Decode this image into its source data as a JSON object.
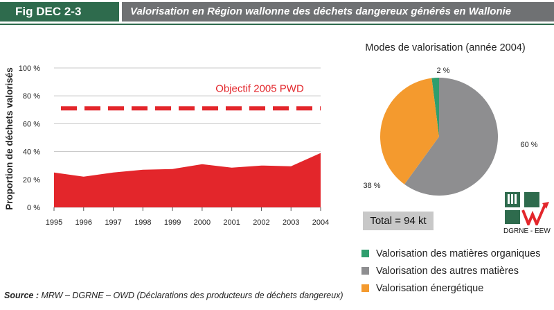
{
  "header": {
    "figure_label": "Fig DEC 2-3",
    "title": "Valorisation en Région wallonne des déchets dangereux générés en Wallonie"
  },
  "source": {
    "prefix": "Source :",
    "text": "MRW – DGRNE – OWD (Déclarations des producteurs de déchets dangereux)"
  },
  "logo": {
    "caption": "DGRNE - EEW",
    "icon": "dgrne-logo-icon"
  },
  "total": {
    "label": "Total = 94 kt"
  },
  "colors": {
    "area": "#e3262b",
    "target": "#e3262b",
    "organic": "#2f9e6e",
    "other": "#8e8e90",
    "energy": "#f49a2e",
    "header_green": "#2e6b4d",
    "header_grey": "#6f7173"
  },
  "chart_data": [
    {
      "type": "area",
      "title": "",
      "ylabel": "Proportion de déchets valorisés",
      "xlabel": "",
      "x": [
        "1995",
        "1996",
        "1997",
        "1998",
        "1999",
        "2000",
        "2001",
        "2002",
        "2003",
        "2004"
      ],
      "series": [
        {
          "values": [
            25,
            22,
            25,
            27,
            27.5,
            31,
            28.5,
            30,
            29.5,
            39
          ]
        }
      ],
      "ylim": [
        0,
        100
      ],
      "yticks": [
        0,
        20,
        40,
        60,
        80,
        100
      ],
      "ytick_labels": [
        "0 %",
        "20 %",
        "40 %",
        "60 %",
        "80 %",
        "100 %"
      ],
      "grid": true,
      "target": {
        "label": "Objectif 2005 PWD",
        "value": 71
      }
    },
    {
      "type": "pie",
      "title": "Modes de valorisation (année 2004)",
      "slices": [
        {
          "name": "Valorisation des matières organiques",
          "value": 2,
          "label": "2 %"
        },
        {
          "name": "Valorisation des autres matières",
          "value": 60,
          "label": "60 %"
        },
        {
          "name": "Valorisation énergétique",
          "value": 38,
          "label": "38 %"
        }
      ]
    }
  ]
}
